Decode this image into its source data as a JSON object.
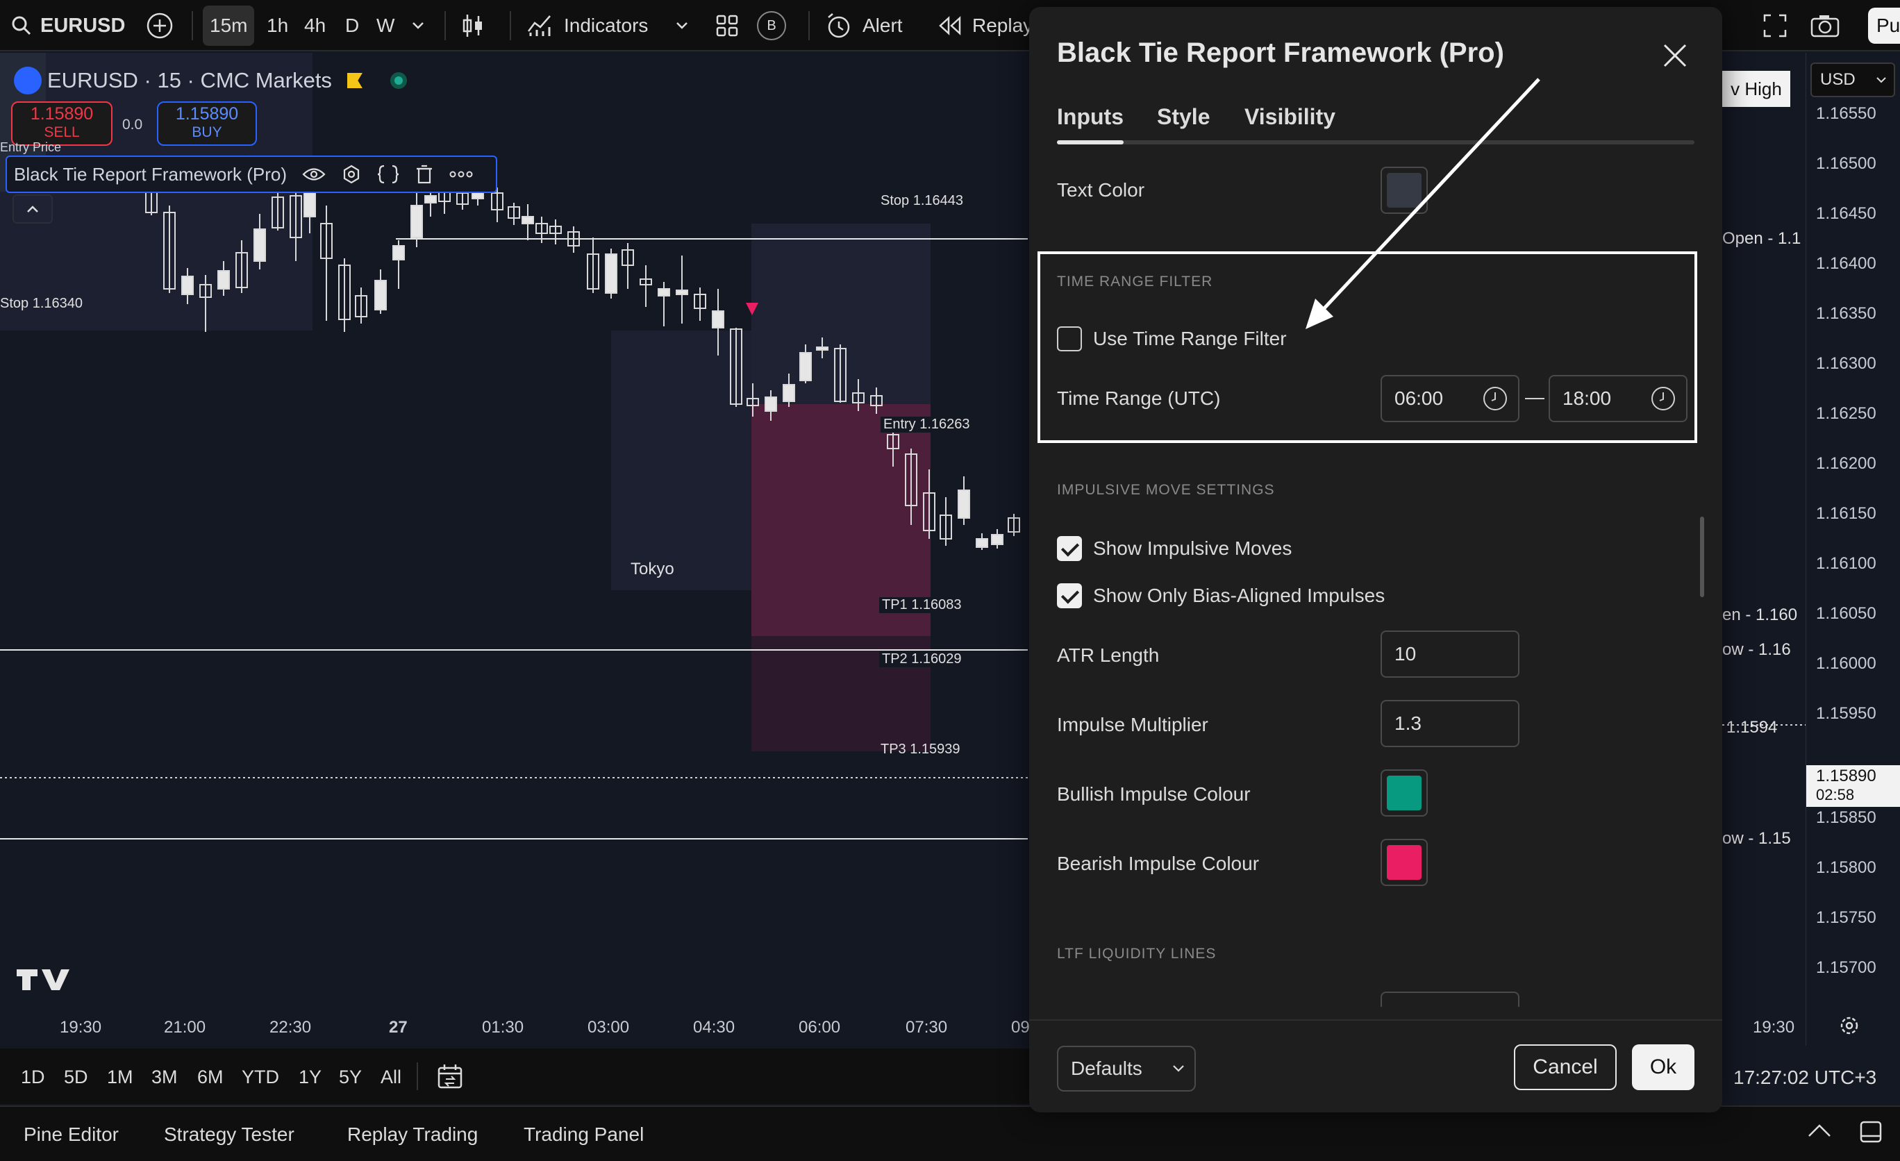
{
  "toolbar": {
    "symbol": "EURUSD",
    "intervals": [
      "15m",
      "1h",
      "4h",
      "D",
      "W"
    ],
    "indicators": "Indicators",
    "badge": "B",
    "alert": "Alert",
    "replay": "Replay",
    "publish": "Pu"
  },
  "chart_header": {
    "title": "EURUSD · 15 · CMC Markets",
    "sell_price": "1.15890",
    "sell_label": "SELL",
    "spread": "0.0",
    "buy_price": "1.15890",
    "buy_label": "BUY",
    "indicator_name": "Black Tie Report Framework (Pro)",
    "entry_partial": "Entry Price"
  },
  "chart_labels": {
    "stop_right": "Stop  1.16443",
    "stop_left": "Stop  1.16340",
    "entry": "Entry  1.16263",
    "tokyo": "Tokyo",
    "tp1": "TP1   1.16083",
    "tp2": "TP2   1.16029",
    "tp3": "TP3   1.15939",
    "prev_high": "v High",
    "open": "Open - 1.1",
    "en": "en - 1.160",
    "ow": "ow  - 1.16",
    "v1594": "1.1594",
    "low": "ow  - 1.15"
  },
  "price_axis": {
    "currency": "USD",
    "ticks": [
      "1.16550",
      "1.16500",
      "1.16450",
      "1.16400",
      "1.16350",
      "1.16300",
      "1.16250",
      "1.16200",
      "1.16150",
      "1.16100",
      "1.16050",
      "1.16000",
      "1.15950",
      "1.15850",
      "1.15800",
      "1.15750",
      "1.15700"
    ],
    "current_price": "1.15890",
    "countdown": "02:58"
  },
  "time_axis": {
    "ticks": [
      "19:30",
      "21:00",
      "22:30",
      "27",
      "01:30",
      "03:00",
      "04:30",
      "06:00",
      "07:30",
      "09"
    ],
    "right_tick": "19:30"
  },
  "range_bar": {
    "ranges": [
      "1D",
      "5D",
      "1M",
      "3M",
      "6M",
      "YTD",
      "1Y",
      "5Y",
      "All"
    ],
    "clock": "17:27:02 UTC+3"
  },
  "bottom_bar": {
    "tabs": [
      "Pine Editor",
      "Strategy Tester",
      "Replay Trading",
      "Trading Panel"
    ]
  },
  "dialog": {
    "title": "Black Tie Report Framework (Pro)",
    "tabs": [
      "Inputs",
      "Style",
      "Visibility"
    ],
    "text_color_label": "Text Color",
    "text_color": "#363a45",
    "section_time": "TIME RANGE FILTER",
    "use_time_range": "Use Time Range Filter",
    "time_range_label": "Time Range (UTC)",
    "time_start": "06:00",
    "time_dash": "—",
    "time_end": "18:00",
    "section_impulse": "IMPULSIVE MOVE SETTINGS",
    "show_impulsive": "Show Impulsive Moves",
    "show_bias_aligned": "Show Only Bias-Aligned Impulses",
    "atr_label": "ATR Length",
    "atr_value": "10",
    "mult_label": "Impulse Multiplier",
    "mult_value": "1.3",
    "bull_label": "Bullish Impulse Colour",
    "bull_color": "#089981",
    "bear_label": "Bearish Impulse Colour",
    "bear_color": "#e91e63",
    "section_ltf": "LTF LIQUIDITY LINES",
    "defaults": "Defaults",
    "cancel": "Cancel",
    "ok": "Ok"
  }
}
